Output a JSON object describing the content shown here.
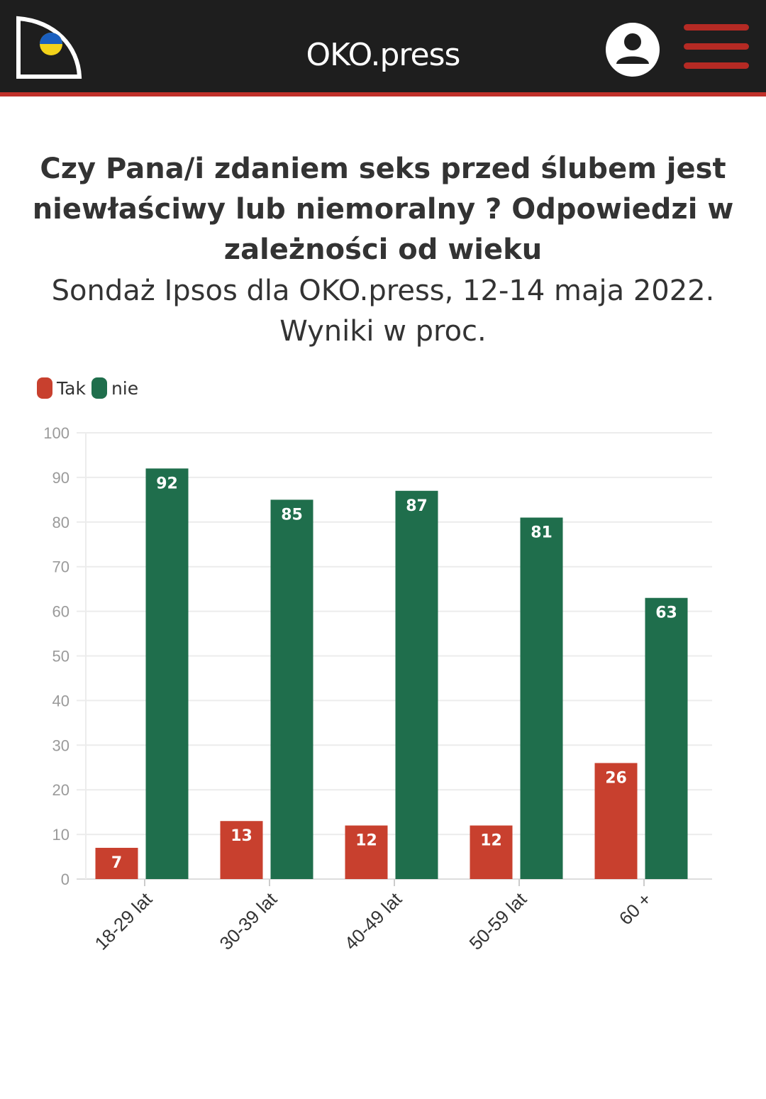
{
  "header": {
    "site_name": "OKO.press",
    "logo_icon": "oko-press-logo-icon",
    "user_icon": "user-account-icon",
    "menu_icon": "hamburger-menu-icon",
    "bar_color": "#1e1e1e",
    "accent_color": "#c0302a"
  },
  "chart_data": {
    "type": "bar",
    "title": "Czy Pana/i zdaniem seks przed ślubem jest niewłaściwy lub niemoralny ? Odpowiedzi w zależności od wieku",
    "subtitle": "Sondaż Ipsos dla OKO.press, 12-14 maja 2022. Wyniki w proc.",
    "categories": [
      "18-29 lat",
      "30-39 lat",
      "40-49 lat",
      "50-59 lat",
      "60 +"
    ],
    "series": [
      {
        "name": "Tak",
        "color": "#c8402e",
        "values": [
          7,
          13,
          12,
          12,
          26
        ]
      },
      {
        "name": "nie",
        "color": "#1f6e4c",
        "values": [
          92,
          85,
          87,
          81,
          63
        ]
      }
    ],
    "xlabel": "",
    "ylabel": "",
    "ylim": [
      0,
      100
    ],
    "yticks": [
      0,
      10,
      20,
      30,
      40,
      50,
      60,
      70,
      80,
      90,
      100
    ],
    "grid": true,
    "legend_position": "top-left",
    "data_labels": true
  }
}
